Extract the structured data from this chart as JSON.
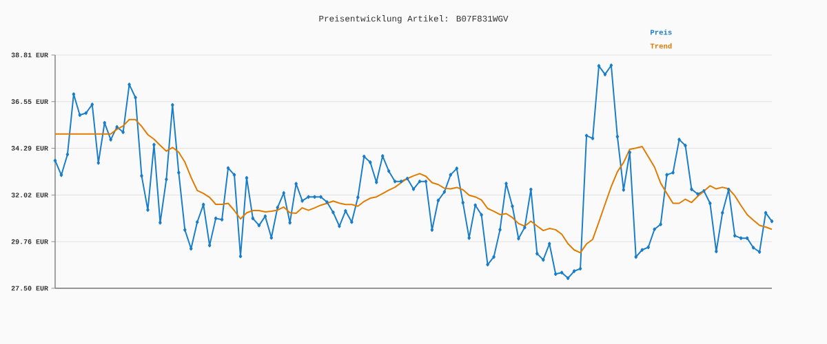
{
  "chart_data": {
    "type": "line",
    "title": "Preisentwicklung Artikel: B07F831WGV",
    "categories": [
      null,
      null,
      null,
      null,
      null,
      null,
      null,
      null,
      null,
      null,
      null,
      null,
      null,
      null,
      null,
      null,
      null,
      null,
      null,
      null,
      null,
      null,
      null,
      null,
      null,
      null,
      null,
      null,
      null,
      null,
      null,
      null,
      null,
      null,
      null,
      null,
      null,
      null,
      null,
      null,
      null,
      null,
      null,
      null,
      null,
      null,
      null,
      null,
      null,
      null,
      null,
      null,
      null,
      null,
      null,
      null,
      null,
      null,
      null,
      null,
      null,
      null,
      null,
      null,
      null,
      null,
      null,
      null,
      null,
      null,
      null,
      null,
      null,
      null,
      null,
      null,
      null,
      null,
      null,
      null,
      null,
      null,
      null,
      null,
      null,
      null,
      null,
      null,
      null,
      null,
      null,
      null,
      null,
      null,
      null,
      null,
      null,
      null,
      null,
      null,
      null,
      null,
      null,
      null,
      null,
      null,
      null,
      null,
      null,
      null,
      null,
      null,
      null,
      null,
      null,
      null,
      null
    ],
    "series": [
      {
        "name": "Preis",
        "color": "#1a7dc8",
        "marker": "diamond",
        "values": [
          33.69,
          32.99,
          33.99,
          36.91,
          35.9,
          36.0,
          36.41,
          33.58,
          35.52,
          34.71,
          35.32,
          35.07,
          37.38,
          36.75,
          32.95,
          31.3,
          34.46,
          30.68,
          32.78,
          36.39,
          33.11,
          30.33,
          29.42,
          30.71,
          31.56,
          29.58,
          30.89,
          30.83,
          33.33,
          33.0,
          29.05,
          32.85,
          30.89,
          30.55,
          30.99,
          29.95,
          31.42,
          32.12,
          30.68,
          32.57,
          31.74,
          31.93,
          31.93,
          31.93,
          31.68,
          31.18,
          30.51,
          31.25,
          30.71,
          31.91,
          33.89,
          33.61,
          32.64,
          33.91,
          33.18,
          32.68,
          32.68,
          32.82,
          32.31,
          32.68,
          32.68,
          30.33,
          31.76,
          32.17,
          33.0,
          33.31,
          31.65,
          29.94,
          31.53,
          31.06,
          28.65,
          29.02,
          30.34,
          32.58,
          31.48,
          29.91,
          30.45,
          32.29,
          29.18,
          28.88,
          29.66,
          28.19,
          28.26,
          27.99,
          28.33,
          28.45,
          34.9,
          34.77,
          38.28,
          37.87,
          38.31,
          34.85,
          32.27,
          34.09,
          29.02,
          29.36,
          29.49,
          30.36,
          30.6,
          33.0,
          33.11,
          34.71,
          34.42,
          32.3,
          32.07,
          32.22,
          31.62,
          29.29,
          31.16,
          32.29,
          30.05,
          29.93,
          29.93,
          29.47,
          29.26,
          31.16,
          30.75
        ]
      },
      {
        "name": "Trend",
        "color": "#e07b00",
        "values": [
          34.98,
          34.98,
          34.98,
          34.98,
          34.98,
          34.98,
          34.98,
          34.98,
          34.98,
          34.98,
          35.21,
          35.37,
          35.68,
          35.68,
          35.35,
          34.95,
          34.73,
          34.43,
          34.15,
          34.33,
          34.1,
          33.62,
          32.88,
          32.24,
          32.1,
          31.91,
          31.57,
          31.57,
          31.62,
          31.27,
          30.86,
          31.16,
          31.27,
          31.27,
          31.2,
          31.24,
          31.29,
          31.44,
          31.16,
          31.14,
          31.4,
          31.28,
          31.4,
          31.53,
          31.62,
          31.73,
          31.63,
          31.56,
          31.56,
          31.48,
          31.71,
          31.87,
          31.93,
          32.09,
          32.26,
          32.4,
          32.62,
          32.82,
          32.95,
          33.06,
          32.93,
          32.62,
          32.53,
          32.35,
          32.32,
          32.39,
          32.28,
          32.01,
          31.93,
          31.78,
          31.37,
          31.23,
          31.07,
          31.12,
          30.93,
          30.64,
          30.51,
          30.75,
          30.52,
          30.3,
          30.4,
          30.34,
          30.12,
          29.66,
          29.36,
          29.22,
          29.65,
          29.87,
          30.71,
          31.58,
          32.43,
          33.15,
          33.6,
          34.24,
          34.3,
          34.37,
          33.88,
          33.38,
          32.6,
          32.1,
          31.62,
          31.62,
          31.82,
          31.66,
          31.96,
          32.21,
          32.47,
          32.32,
          32.4,
          32.32,
          31.99,
          31.51,
          31.07,
          30.8,
          30.55,
          30.47,
          30.36
        ]
      }
    ],
    "ylim": [
      27.5,
      38.81
    ],
    "yticks": [
      {
        "value": 27.5,
        "label": "27.50 EUR"
      },
      {
        "value": 29.76,
        "label": "29.76 EUR"
      },
      {
        "value": 32.02,
        "label": "32.02 EUR"
      },
      {
        "value": 34.29,
        "label": "34.29 EUR"
      },
      {
        "value": 36.55,
        "label": "36.55 EUR"
      },
      {
        "value": 38.81,
        "label": "38.81 EUR"
      }
    ],
    "grid": "y",
    "legend": "top right",
    "tick_labels": "y"
  }
}
